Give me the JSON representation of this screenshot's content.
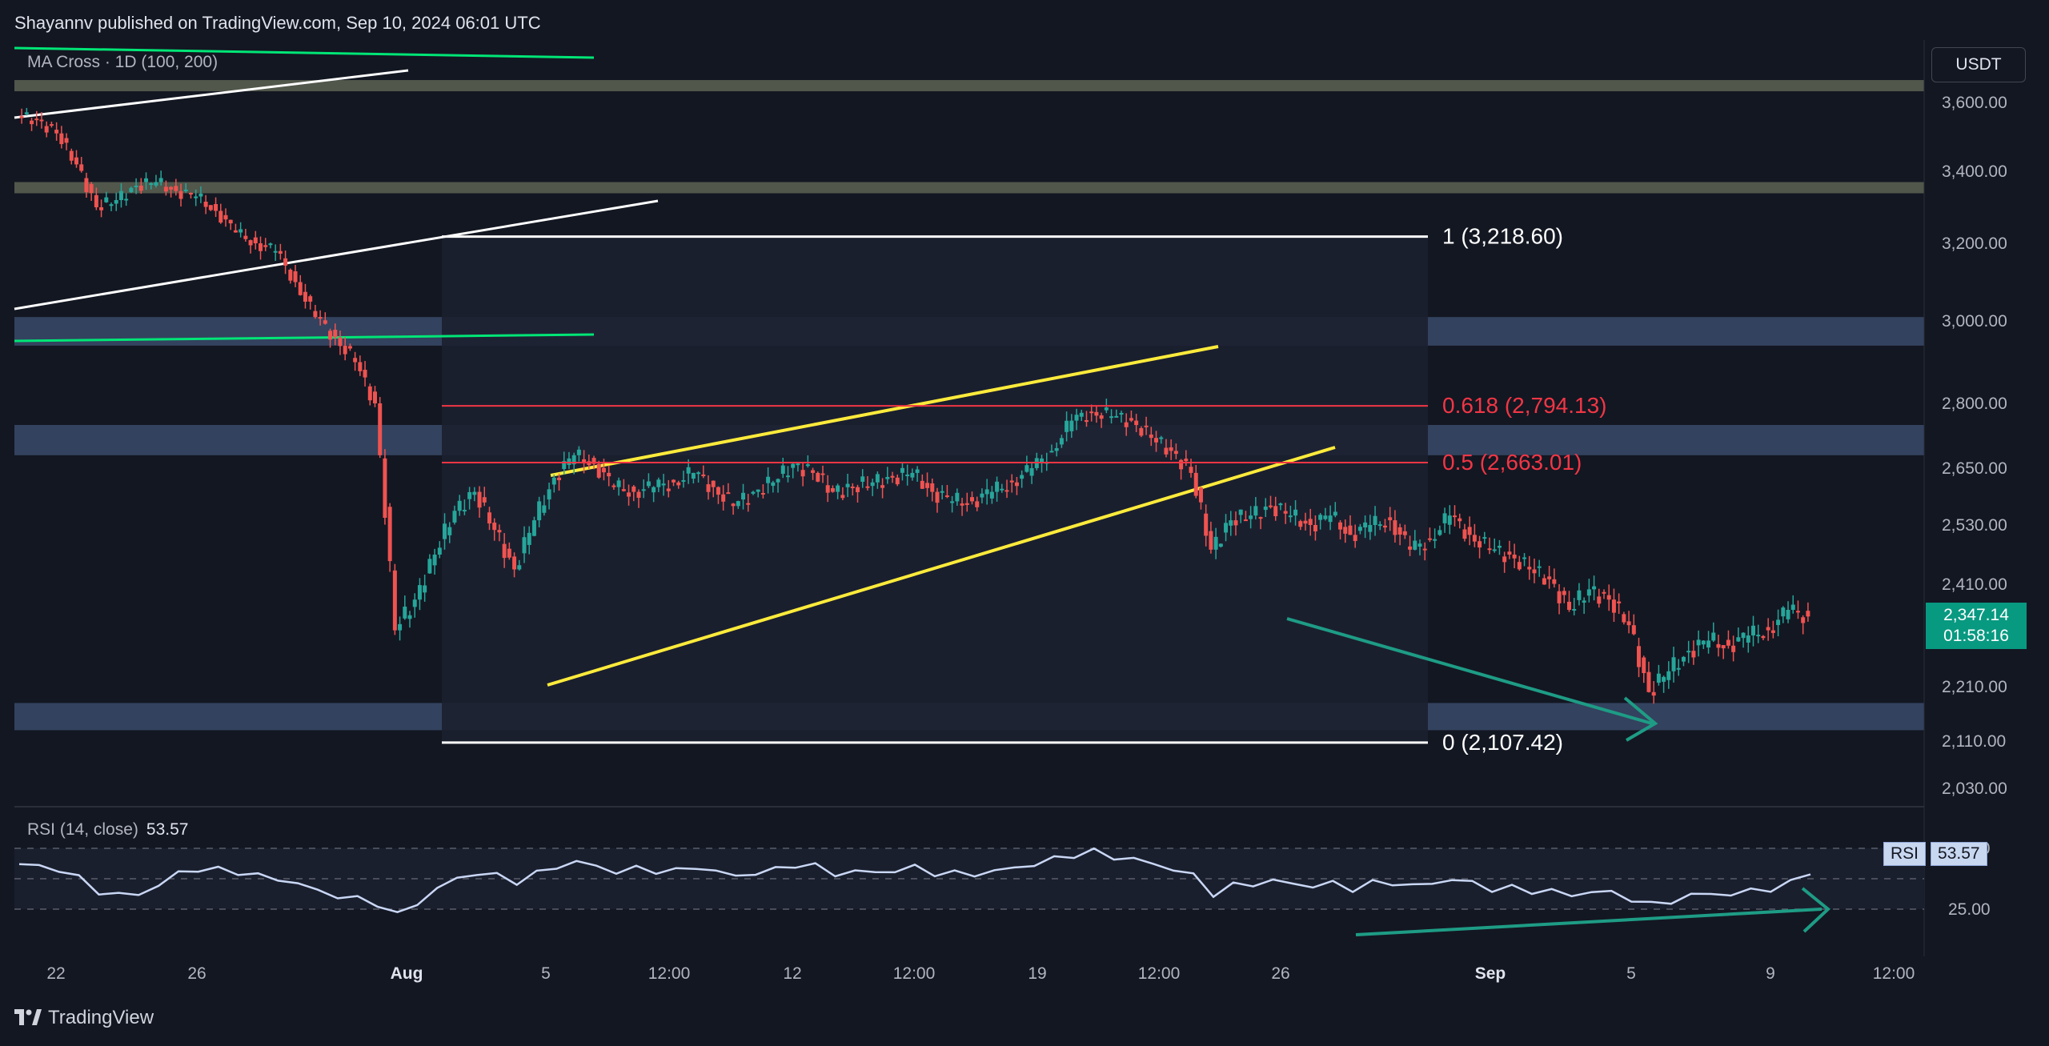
{
  "header": {
    "publisher": "Shayannv published on TradingView.com, Sep 10, 2024 06:01 UTC"
  },
  "indicator": {
    "label": "MA Cross · 1D (100, 200)"
  },
  "currency_button": "USDT",
  "last_price": {
    "price": "2,347.14",
    "countdown": "01:58:16"
  },
  "rsi": {
    "label": "RSI (14, close)",
    "value": "53.57",
    "tag_name": "RSI",
    "tag_value": "53.57"
  },
  "footer": {
    "brand": "TradingView"
  },
  "colors": {
    "bg": "#131722",
    "up": "#26a69a",
    "down": "#ef5350",
    "fib_red": "#f23645",
    "channel": "#ffeb3b",
    "ma_green": "#00e676",
    "arrow": "#1e9c85"
  },
  "chart_data": {
    "type": "candlestick",
    "symbol_quote": "USDT",
    "price_axis_ticks": [
      "3,600.00",
      "3,400.00",
      "3,200.00",
      "3,000.00",
      "2,800.00",
      "2,650.00",
      "2,530.00",
      "2,410.00",
      "2,210.00",
      "2,110.00",
      "2,030.00"
    ],
    "time_axis_ticks": [
      "22",
      "26",
      "Aug",
      "5",
      "12:00",
      "12",
      "12:00",
      "19",
      "12:00",
      "26",
      "Sep",
      "5",
      "9",
      "12:00"
    ],
    "fib_levels": [
      {
        "label": "1 (3,218.60)",
        "ratio": 1,
        "price": 3218.6
      },
      {
        "label": "0.618 (2,794.13)",
        "ratio": 0.618,
        "price": 2794.13
      },
      {
        "label": "0.5 (2,663.01)",
        "ratio": 0.5,
        "price": 2663.01
      },
      {
        "label": "0 (2,107.42)",
        "ratio": 0,
        "price": 2107.42
      }
    ],
    "zones": [
      {
        "from": 3640,
        "to": 3665
      },
      {
        "from": 3345,
        "to": 3370
      },
      {
        "from": 2940,
        "to": 3010
      },
      {
        "from": 2680,
        "to": 2750
      },
      {
        "from": 2130,
        "to": 2180
      }
    ],
    "price_path": [
      3560,
      3550,
      3510,
      3420,
      3300,
      3320,
      3360,
      3370,
      3345,
      3330,
      3290,
      3230,
      3200,
      3180,
      3100,
      3010,
      2960,
      2900,
      2800,
      2320,
      2380,
      2470,
      2560,
      2600,
      2520,
      2440,
      2540,
      2630,
      2680,
      2660,
      2610,
      2600,
      2610,
      2620,
      2640,
      2610,
      2570,
      2600,
      2620,
      2660,
      2640,
      2600,
      2610,
      2620,
      2630,
      2640,
      2600,
      2580,
      2580,
      2600,
      2620,
      2650,
      2690,
      2760,
      2780,
      2770,
      2760,
      2720,
      2690,
      2640,
      2480,
      2540,
      2550,
      2570,
      2550,
      2530,
      2550,
      2510,
      2530,
      2540,
      2480,
      2500,
      2550,
      2510,
      2480,
      2470,
      2440,
      2420,
      2360,
      2400,
      2380,
      2330,
      2200,
      2240,
      2280,
      2300,
      2290,
      2310,
      2320,
      2360,
      2347
    ],
    "ma_lines": [
      {
        "name": "MA 100",
        "color": "#00e676"
      },
      {
        "name": "MA 200",
        "color": "#00e676"
      }
    ],
    "rsi_levels": {
      "upper": 75.0,
      "lower": 25.0,
      "tick_labels": [
        "75.00",
        "25.00"
      ]
    },
    "rsi_path": [
      62,
      60,
      58,
      50,
      40,
      36,
      38,
      44,
      55,
      58,
      57,
      56,
      52,
      50,
      46,
      40,
      36,
      33,
      30,
      20,
      30,
      42,
      50,
      55,
      52,
      48,
      54,
      60,
      64,
      60,
      56,
      58,
      57,
      56,
      60,
      56,
      52,
      55,
      57,
      62,
      60,
      54,
      56,
      55,
      57,
      59,
      55,
      54,
      54,
      56,
      59,
      62,
      66,
      70,
      72,
      68,
      66,
      62,
      58,
      52,
      38,
      44,
      46,
      48,
      46,
      44,
      46,
      42,
      46,
      47,
      44,
      46,
      50,
      46,
      42,
      42,
      40,
      40,
      36,
      40,
      38,
      34,
      28,
      32,
      36,
      38,
      37,
      40,
      42,
      46,
      53.57
    ]
  }
}
